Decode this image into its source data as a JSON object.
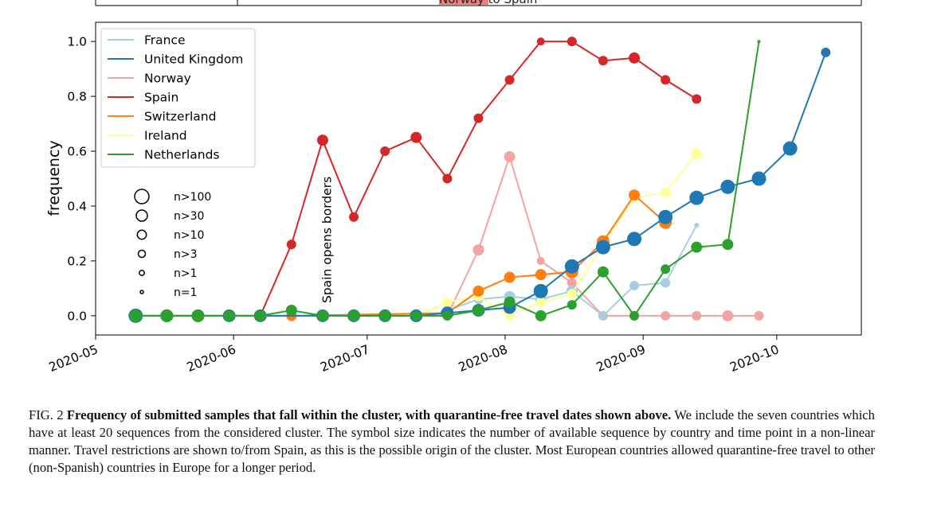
{
  "chart_data": {
    "type": "line",
    "ylabel": "frequency",
    "xlabel": "",
    "ylim": [
      -0.07,
      1.07
    ],
    "yticks": [
      0.0,
      0.2,
      0.4,
      0.6,
      0.8,
      1.0
    ],
    "ytick_labels": [
      "0.0",
      "0.2",
      "0.4",
      "0.6",
      "0.8",
      "1.0"
    ],
    "xlim": [
      "2020-05-01",
      "2020-10-20"
    ],
    "xticks": [
      "2020-05-01",
      "2020-06-01",
      "2020-07-01",
      "2020-08-01",
      "2020-09-01",
      "2020-10-01"
    ],
    "xtick_labels": [
      "2020-05",
      "2020-06",
      "2020-07",
      "2020-08",
      "2020-09",
      "2020-10"
    ],
    "top_panel_text": {
      "highlight": "Norway",
      "rest": " to Spain"
    },
    "annotation": {
      "text": "Spain opens borders",
      "date": "2020-06-22"
    },
    "size_legend": [
      {
        "label": "n>100",
        "r": 9
      },
      {
        "label": "n>30",
        "r": 7
      },
      {
        "label": "n>10",
        "r": 5.7
      },
      {
        "label": "n>3",
        "r": 4.5
      },
      {
        "label": "n>1",
        "r": 3.2
      },
      {
        "label": "n=1",
        "r": 2
      }
    ],
    "series": [
      {
        "name": "Spain",
        "color": "#d62728",
        "points": [
          [
            "2020-05-10",
            0,
            8
          ],
          [
            "2020-05-17",
            0,
            8
          ],
          [
            "2020-05-24",
            0,
            7
          ],
          [
            "2020-05-31",
            0,
            6
          ],
          [
            "2020-06-07",
            0,
            5
          ],
          [
            "2020-06-14",
            0.26,
            6
          ],
          [
            "2020-06-21",
            0.64,
            7
          ],
          [
            "2020-06-28",
            0.36,
            6
          ],
          [
            "2020-07-05",
            0.6,
            6
          ],
          [
            "2020-07-12",
            0.65,
            7
          ],
          [
            "2020-07-19",
            0.5,
            6
          ],
          [
            "2020-07-26",
            0.72,
            6
          ],
          [
            "2020-08-02",
            0.86,
            6
          ],
          [
            "2020-08-09",
            1.0,
            5
          ],
          [
            "2020-08-16",
            1.0,
            6
          ],
          [
            "2020-08-23",
            0.93,
            6
          ],
          [
            "2020-08-30",
            0.94,
            7
          ],
          [
            "2020-09-06",
            0.86,
            6
          ],
          [
            "2020-09-13",
            0.79,
            6
          ]
        ]
      },
      {
        "name": "Norway",
        "color": "#f4a3a3",
        "points": [
          [
            "2020-05-10",
            0,
            8
          ],
          [
            "2020-05-17",
            0,
            7
          ],
          [
            "2020-05-24",
            0,
            7
          ],
          [
            "2020-05-31",
            0,
            6
          ],
          [
            "2020-06-07",
            0,
            6
          ],
          [
            "2020-06-14",
            0,
            7
          ],
          [
            "2020-06-21",
            0,
            7
          ],
          [
            "2020-06-28",
            0,
            7
          ],
          [
            "2020-07-05",
            0,
            7
          ],
          [
            "2020-07-12",
            0,
            7
          ],
          [
            "2020-07-19",
            0,
            6
          ],
          [
            "2020-07-26",
            0.24,
            7
          ],
          [
            "2020-08-02",
            0.58,
            7
          ],
          [
            "2020-08-09",
            0.2,
            5
          ],
          [
            "2020-08-16",
            0.12,
            6
          ],
          [
            "2020-08-23",
            0,
            6
          ],
          [
            "2020-08-30",
            0,
            6
          ],
          [
            "2020-09-06",
            0,
            6
          ],
          [
            "2020-09-13",
            0,
            6
          ],
          [
            "2020-09-20",
            0,
            7
          ],
          [
            "2020-09-27",
            0,
            6
          ]
        ]
      },
      {
        "name": "France",
        "color": "#a6cee3",
        "points": [
          [
            "2020-07-19",
            0.02,
            6
          ],
          [
            "2020-07-26",
            0.06,
            6
          ],
          [
            "2020-08-02",
            0.07,
            7
          ],
          [
            "2020-08-09",
            0.06,
            7
          ],
          [
            "2020-08-16",
            0.09,
            7
          ],
          [
            "2020-08-23",
            0,
            5
          ],
          [
            "2020-08-30",
            0.11,
            6
          ],
          [
            "2020-09-06",
            0.12,
            6
          ],
          [
            "2020-09-13",
            0.33,
            3
          ]
        ]
      },
      {
        "name": "Ireland",
        "color": "#ffff99",
        "points": [
          [
            "2020-07-12",
            0,
            6
          ],
          [
            "2020-07-19",
            0.05,
            6
          ],
          [
            "2020-07-26",
            0.07,
            6
          ],
          [
            "2020-08-02",
            0,
            6
          ],
          [
            "2020-08-09",
            0.05,
            6
          ],
          [
            "2020-08-16",
            0.08,
            6
          ],
          [
            "2020-08-23",
            0.26,
            6
          ],
          [
            "2020-08-30",
            0.43,
            6
          ],
          [
            "2020-09-06",
            0.45,
            6
          ],
          [
            "2020-09-13",
            0.59,
            7
          ]
        ]
      },
      {
        "name": "Switzerland",
        "color": "#ff7f0e",
        "points": [
          [
            "2020-06-14",
            0,
            6
          ],
          [
            "2020-07-19",
            0.01,
            6
          ],
          [
            "2020-07-26",
            0.09,
            7
          ],
          [
            "2020-08-02",
            0.14,
            7
          ],
          [
            "2020-08-09",
            0.15,
            7
          ],
          [
            "2020-08-16",
            0.16,
            8
          ],
          [
            "2020-08-23",
            0.27,
            8
          ],
          [
            "2020-08-30",
            0.44,
            7
          ],
          [
            "2020-09-06",
            0.34,
            8
          ]
        ]
      },
      {
        "name": "United Kingdom",
        "color": "#1f77b4",
        "points": [
          [
            "2020-05-10",
            0,
            9
          ],
          [
            "2020-05-17",
            0,
            8
          ],
          [
            "2020-05-24",
            0,
            8
          ],
          [
            "2020-05-31",
            0,
            8
          ],
          [
            "2020-06-07",
            0,
            8
          ],
          [
            "2020-06-21",
            0,
            8
          ],
          [
            "2020-06-28",
            0,
            8
          ],
          [
            "2020-07-05",
            0,
            8
          ],
          [
            "2020-07-12",
            0,
            8
          ],
          [
            "2020-07-19",
            0.01,
            8
          ],
          [
            "2020-07-26",
            0.02,
            8
          ],
          [
            "2020-08-02",
            0.03,
            8
          ],
          [
            "2020-08-09",
            0.09,
            9
          ],
          [
            "2020-08-16",
            0.18,
            9
          ],
          [
            "2020-08-23",
            0.25,
            9
          ],
          [
            "2020-08-30",
            0.28,
            9
          ],
          [
            "2020-09-06",
            0.36,
            9
          ],
          [
            "2020-09-13",
            0.43,
            9
          ],
          [
            "2020-09-20",
            0.47,
            9
          ],
          [
            "2020-09-27",
            0.5,
            9
          ],
          [
            "2020-10-04",
            0.61,
            9
          ],
          [
            "2020-10-12",
            0.96,
            6
          ]
        ]
      },
      {
        "name": "Netherlands",
        "color": "#2ca02c",
        "points": [
          [
            "2020-05-10",
            0,
            8
          ],
          [
            "2020-05-17",
            0,
            8
          ],
          [
            "2020-05-24",
            0,
            8
          ],
          [
            "2020-05-31",
            0,
            7
          ],
          [
            "2020-06-07",
            0,
            7
          ],
          [
            "2020-06-14",
            0.02,
            7
          ],
          [
            "2020-06-21",
            0,
            7
          ],
          [
            "2020-06-28",
            0,
            7
          ],
          [
            "2020-07-05",
            0,
            7
          ],
          [
            "2020-07-12",
            0,
            6
          ],
          [
            "2020-07-19",
            0,
            6
          ],
          [
            "2020-07-26",
            0.02,
            7
          ],
          [
            "2020-08-02",
            0.05,
            7
          ],
          [
            "2020-08-09",
            0,
            7
          ],
          [
            "2020-08-16",
            0.04,
            6
          ],
          [
            "2020-08-23",
            0.16,
            7
          ],
          [
            "2020-08-30",
            0,
            6
          ],
          [
            "2020-09-06",
            0.17,
            6
          ],
          [
            "2020-09-13",
            0.25,
            7
          ],
          [
            "2020-09-20",
            0.26,
            7
          ],
          [
            "2020-09-27",
            1.0,
            2
          ]
        ]
      }
    ],
    "legend": {
      "placement": "top-left",
      "entries": [
        {
          "name": "France",
          "color": "#a6cee3"
        },
        {
          "name": "United Kingdom",
          "color": "#1f77b4"
        },
        {
          "name": "Norway",
          "color": "#f4a3a3"
        },
        {
          "name": "Spain",
          "color": "#d62728"
        },
        {
          "name": "Switzerland",
          "color": "#ff7f0e"
        },
        {
          "name": "Ireland",
          "color": "#ffff99"
        },
        {
          "name": "Netherlands",
          "color": "#2ca02c"
        }
      ]
    }
  },
  "caption": {
    "label": "FIG. 2",
    "bold": "Frequency of submitted samples that fall within the cluster, with quarantine-free travel dates shown above.",
    "body": "We include the seven countries which have at least 20 sequences from the considered cluster. The symbol size indicates the number of available sequence by country and time point in a non-linear manner. Travel restrictions are shown to/from Spain, as this is the possible origin of the cluster. Most European countries allowed quarantine-free travel to other (non-Spanish) countries in Europe for a longer period."
  }
}
